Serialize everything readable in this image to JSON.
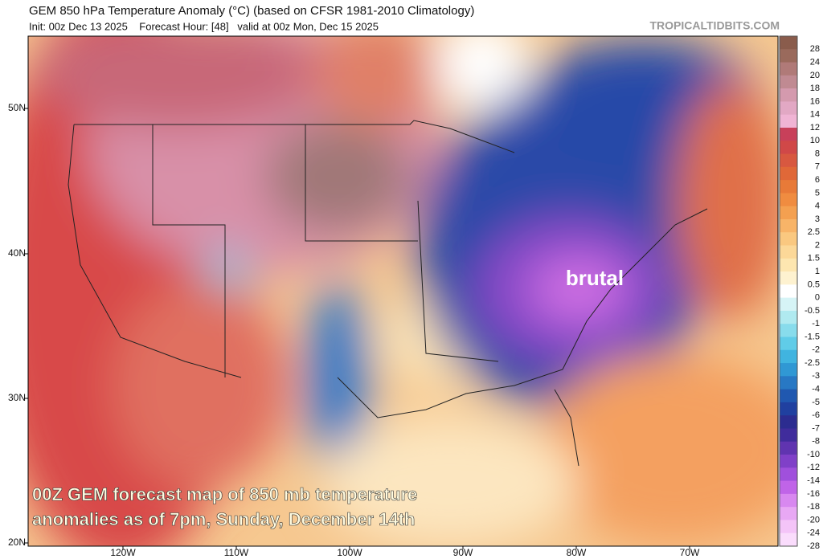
{
  "header": {
    "title": "GEM 850 hPa Temperature Anomaly (°C) (based on CFSR 1981-2010 Climatology)",
    "subtitle": "Init: 00z Dec 13 2025    Forecast Hour: [48]   valid at 00z Mon, Dec 15 2025",
    "site": "TROPICALTIDBITS.COM"
  },
  "map": {
    "lat_labels": [
      "50N",
      "40N",
      "30N",
      "20N"
    ],
    "lon_labels": [
      "120W",
      "110W",
      "100W",
      "90W",
      "80W",
      "70W"
    ],
    "annotation": "brutal",
    "caption": [
      "00Z GEM forecast map of 850 mb temperature",
      "anomalies as of 7pm, Sunday, December 14th"
    ]
  },
  "colorbar": {
    "labels": [
      28,
      24,
      20,
      18,
      16,
      14,
      12,
      10,
      8,
      7,
      6,
      5,
      4,
      3,
      2.5,
      2,
      1.5,
      1,
      0.5,
      0,
      -0.5,
      -1,
      -1.5,
      -2,
      -2.5,
      -3,
      -4,
      -5,
      -6,
      -7,
      -8,
      -10,
      -12,
      -14,
      -16,
      -18,
      -20,
      -24,
      -28
    ],
    "colors": [
      "#8a5c4c",
      "#9a6a5c",
      "#b07a78",
      "#c08a92",
      "#d49aae",
      "#e2a8c4",
      "#f0b4d4",
      "#c8405a",
      "#d04848",
      "#d85840",
      "#e06838",
      "#e87a38",
      "#f08c40",
      "#f4a050",
      "#f8b468",
      "#fac880",
      "#fcd898",
      "#fde6b0",
      "#fef2d0",
      "#ffffff",
      "#d6f4f6",
      "#b0eaf0",
      "#88dcec",
      "#60cce8",
      "#40b4e0",
      "#3098d4",
      "#2878c4",
      "#2058b0",
      "#2040a0",
      "#2c2c90",
      "#402c9c",
      "#6034b0",
      "#8040c8",
      "#a050dc",
      "#c064e8",
      "#d888f0",
      "#e8a8f4",
      "#f4c4f8",
      "#fadcfc"
    ]
  }
}
